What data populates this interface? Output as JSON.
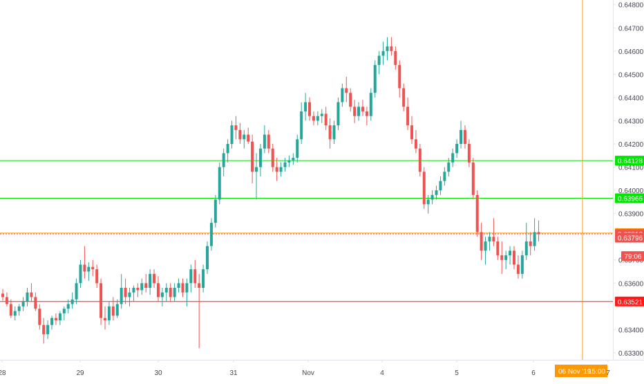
{
  "colors": {
    "up": "#26a69a",
    "down": "#ef5350",
    "green_line": "#00e600",
    "orange_line": "#ff9800",
    "red_line": "#ff1a1a",
    "axis_text": "#434651",
    "axis_line": "#e0e3eb"
  },
  "chart_data": {
    "type": "candlestick",
    "title": "",
    "xlabel": "",
    "ylabel": "",
    "ylim": [
      0.6327,
      0.6482
    ],
    "grid": false,
    "y_ticks": [
      "0.64800",
      "0.64700",
      "0.64600",
      "0.64500",
      "0.64400",
      "0.64300",
      "0.64200",
      "0.64100",
      "0.64000",
      "0.63900",
      "0.63700",
      "0.63600",
      "0.63400",
      "0.63300"
    ],
    "x_tick_labels": [
      "28",
      "29",
      "30",
      "31",
      "Nov",
      "4",
      "5",
      "6",
      "7"
    ],
    "horizontal_lines": [
      {
        "price": 0.64128,
        "label": "0.64128",
        "color_key": "green_line"
      },
      {
        "price": 0.63966,
        "label": "0.63966",
        "color_key": "green_line"
      },
      {
        "price": 0.63816,
        "label": "0.63816",
        "color_key": "orange_line"
      },
      {
        "price": 0.63521,
        "label": "0.63521",
        "color_key": "red_line"
      }
    ],
    "current_price": {
      "price": 0.63812,
      "label": "0.63812",
      "countdown": "79:06"
    },
    "price_badges": [
      {
        "price": 0.63796,
        "label": "0.63796"
      }
    ],
    "crosshair": {
      "date_label": "06 Nov '19",
      "time_label": "15:00"
    },
    "candles": [
      [
        0.63555,
        0.63575,
        0.63525,
        0.6354
      ],
      [
        0.6354,
        0.6356,
        0.635,
        0.6351
      ],
      [
        0.6351,
        0.6353,
        0.6345,
        0.6346
      ],
      [
        0.6346,
        0.635,
        0.6344,
        0.6348
      ],
      [
        0.6348,
        0.6351,
        0.6346,
        0.635
      ],
      [
        0.635,
        0.6354,
        0.6348,
        0.6352
      ],
      [
        0.6352,
        0.6358,
        0.635,
        0.6356
      ],
      [
        0.6356,
        0.636,
        0.6352,
        0.6354
      ],
      [
        0.6354,
        0.6356,
        0.6348,
        0.6349
      ],
      [
        0.6349,
        0.6351,
        0.634,
        0.6342
      ],
      [
        0.6342,
        0.6345,
        0.6334,
        0.6338
      ],
      [
        0.6338,
        0.6344,
        0.6336,
        0.6342
      ],
      [
        0.6342,
        0.6346,
        0.634,
        0.6345
      ],
      [
        0.6345,
        0.6347,
        0.6342,
        0.6344
      ],
      [
        0.6344,
        0.6348,
        0.6342,
        0.6347
      ],
      [
        0.6347,
        0.635,
        0.6344,
        0.6349
      ],
      [
        0.6349,
        0.6353,
        0.6347,
        0.6351
      ],
      [
        0.6351,
        0.6356,
        0.6349,
        0.6353
      ],
      [
        0.6353,
        0.6362,
        0.6351,
        0.636
      ],
      [
        0.636,
        0.637,
        0.6358,
        0.6368
      ],
      [
        0.6368,
        0.6376,
        0.6362,
        0.6365
      ],
      [
        0.6365,
        0.6369,
        0.6361,
        0.6367
      ],
      [
        0.6367,
        0.637,
        0.6363,
        0.6366
      ],
      [
        0.6366,
        0.6368,
        0.6358,
        0.636
      ],
      [
        0.636,
        0.6362,
        0.6342,
        0.6345
      ],
      [
        0.6345,
        0.635,
        0.634,
        0.6344
      ],
      [
        0.6344,
        0.6352,
        0.6342,
        0.635
      ],
      [
        0.635,
        0.6354,
        0.6344,
        0.6346
      ],
      [
        0.6346,
        0.6353,
        0.6345,
        0.6351
      ],
      [
        0.6351,
        0.6364,
        0.6349,
        0.6358
      ],
      [
        0.6358,
        0.6362,
        0.6351,
        0.6354
      ],
      [
        0.6354,
        0.6358,
        0.635,
        0.6356
      ],
      [
        0.6356,
        0.6359,
        0.6352,
        0.6358
      ],
      [
        0.6358,
        0.636,
        0.6354,
        0.6357
      ],
      [
        0.6357,
        0.6362,
        0.6355,
        0.636
      ],
      [
        0.636,
        0.6364,
        0.6356,
        0.6358
      ],
      [
        0.6358,
        0.6366,
        0.6355,
        0.6364
      ],
      [
        0.6364,
        0.6366,
        0.6358,
        0.636
      ],
      [
        0.636,
        0.6363,
        0.6352,
        0.6354
      ],
      [
        0.6354,
        0.6358,
        0.635,
        0.6356
      ],
      [
        0.6356,
        0.636,
        0.6352,
        0.6358
      ],
      [
        0.6358,
        0.636,
        0.6352,
        0.6354
      ],
      [
        0.6354,
        0.636,
        0.6352,
        0.6358
      ],
      [
        0.6358,
        0.6362,
        0.6356,
        0.636
      ],
      [
        0.636,
        0.6362,
        0.6354,
        0.6356
      ],
      [
        0.6356,
        0.6362,
        0.635,
        0.636
      ],
      [
        0.636,
        0.6368,
        0.6356,
        0.6366
      ],
      [
        0.6366,
        0.637,
        0.6358,
        0.636
      ],
      [
        0.636,
        0.6364,
        0.6332,
        0.6358
      ],
      [
        0.6358,
        0.6368,
        0.6356,
        0.6366
      ],
      [
        0.6366,
        0.6378,
        0.6364,
        0.6376
      ],
      [
        0.6376,
        0.6388,
        0.6374,
        0.6386
      ],
      [
        0.6386,
        0.6398,
        0.6384,
        0.6396
      ],
      [
        0.6396,
        0.6412,
        0.6394,
        0.641
      ],
      [
        0.641,
        0.6418,
        0.6406,
        0.6416
      ],
      [
        0.6416,
        0.6422,
        0.6412,
        0.642
      ],
      [
        0.642,
        0.643,
        0.6418,
        0.6428
      ],
      [
        0.6428,
        0.6432,
        0.6422,
        0.6426
      ],
      [
        0.6426,
        0.6429,
        0.642,
        0.6422
      ],
      [
        0.6422,
        0.6426,
        0.6418,
        0.6424
      ],
      [
        0.6424,
        0.6427,
        0.642,
        0.6421
      ],
      [
        0.6421,
        0.6424,
        0.6403,
        0.6408
      ],
      [
        0.6408,
        0.6416,
        0.6396,
        0.641
      ],
      [
        0.641,
        0.642,
        0.6406,
        0.6418
      ],
      [
        0.6418,
        0.6428,
        0.6416,
        0.6424
      ],
      [
        0.6424,
        0.6426,
        0.6416,
        0.6418
      ],
      [
        0.6418,
        0.642,
        0.6408,
        0.641
      ],
      [
        0.641,
        0.6414,
        0.6404,
        0.6408
      ],
      [
        0.6408,
        0.6412,
        0.6406,
        0.641
      ],
      [
        0.641,
        0.6414,
        0.6408,
        0.6412
      ],
      [
        0.6412,
        0.6415,
        0.641,
        0.6413
      ],
      [
        0.6413,
        0.6416,
        0.6411,
        0.6414
      ],
      [
        0.6414,
        0.6424,
        0.6412,
        0.6422
      ],
      [
        0.6422,
        0.6438,
        0.642,
        0.6434
      ],
      [
        0.6434,
        0.6442,
        0.643,
        0.6438
      ],
      [
        0.6438,
        0.644,
        0.643,
        0.6432
      ],
      [
        0.6432,
        0.6434,
        0.6428,
        0.643
      ],
      [
        0.643,
        0.6434,
        0.6428,
        0.6432
      ],
      [
        0.6432,
        0.6435,
        0.6429,
        0.6433
      ],
      [
        0.6433,
        0.6436,
        0.6426,
        0.6428
      ],
      [
        0.6428,
        0.6431,
        0.6418,
        0.6422
      ],
      [
        0.6422,
        0.643,
        0.642,
        0.6428
      ],
      [
        0.6428,
        0.644,
        0.6426,
        0.6438
      ],
      [
        0.6438,
        0.6446,
        0.6436,
        0.6444
      ],
      [
        0.6444,
        0.6449,
        0.6438,
        0.6442
      ],
      [
        0.6442,
        0.6444,
        0.6434,
        0.6436
      ],
      [
        0.6436,
        0.6439,
        0.6429,
        0.6432
      ],
      [
        0.6432,
        0.6438,
        0.643,
        0.6436
      ],
      [
        0.6436,
        0.6439,
        0.6432,
        0.6434
      ],
      [
        0.6434,
        0.6436,
        0.6428,
        0.6432
      ],
      [
        0.6432,
        0.6444,
        0.643,
        0.6442
      ],
      [
        0.6442,
        0.6456,
        0.644,
        0.6454
      ],
      [
        0.6454,
        0.646,
        0.645,
        0.6458
      ],
      [
        0.6458,
        0.6464,
        0.6454,
        0.646
      ],
      [
        0.646,
        0.6466,
        0.6456,
        0.6462
      ],
      [
        0.6462,
        0.6466,
        0.6458,
        0.646
      ],
      [
        0.646,
        0.6462,
        0.6452,
        0.6454
      ],
      [
        0.6454,
        0.6456,
        0.644,
        0.6444
      ],
      [
        0.6444,
        0.6446,
        0.6434,
        0.6436
      ],
      [
        0.6436,
        0.644,
        0.6426,
        0.6428
      ],
      [
        0.6428,
        0.6432,
        0.642,
        0.6422
      ],
      [
        0.6422,
        0.6426,
        0.6416,
        0.6418
      ],
      [
        0.6418,
        0.642,
        0.6406,
        0.6408
      ],
      [
        0.6408,
        0.641,
        0.6392,
        0.6394
      ],
      [
        0.6394,
        0.6398,
        0.639,
        0.6396
      ],
      [
        0.6396,
        0.64,
        0.6394,
        0.6398
      ],
      [
        0.6398,
        0.6402,
        0.6396,
        0.64
      ],
      [
        0.64,
        0.6406,
        0.6398,
        0.6404
      ],
      [
        0.6404,
        0.641,
        0.6402,
        0.6408
      ],
      [
        0.6408,
        0.6414,
        0.6406,
        0.6412
      ],
      [
        0.6412,
        0.6418,
        0.641,
        0.6416
      ],
      [
        0.6416,
        0.6422,
        0.6414,
        0.642
      ],
      [
        0.642,
        0.643,
        0.6418,
        0.6426
      ],
      [
        0.6426,
        0.6428,
        0.6418,
        0.642
      ],
      [
        0.642,
        0.6422,
        0.641,
        0.6412
      ],
      [
        0.6412,
        0.6414,
        0.6396,
        0.6398
      ],
      [
        0.6398,
        0.64,
        0.638,
        0.6382
      ],
      [
        0.6382,
        0.6386,
        0.637,
        0.6374
      ],
      [
        0.6374,
        0.638,
        0.6368,
        0.6378
      ],
      [
        0.6378,
        0.6382,
        0.6374,
        0.638
      ],
      [
        0.638,
        0.6388,
        0.6376,
        0.6378
      ],
      [
        0.6378,
        0.638,
        0.637,
        0.6372
      ],
      [
        0.6372,
        0.6378,
        0.6364,
        0.637
      ],
      [
        0.637,
        0.6374,
        0.6366,
        0.6372
      ],
      [
        0.6372,
        0.6376,
        0.6368,
        0.6374
      ],
      [
        0.6374,
        0.6376,
        0.6366,
        0.6368
      ],
      [
        0.6368,
        0.6372,
        0.6362,
        0.6364
      ],
      [
        0.6364,
        0.6374,
        0.6362,
        0.6372
      ],
      [
        0.6372,
        0.6386,
        0.637,
        0.6378
      ],
      [
        0.6378,
        0.6382,
        0.6372,
        0.6376
      ],
      [
        0.6376,
        0.6388,
        0.6374,
        0.6382
      ],
      [
        0.6382,
        0.6387,
        0.6378,
        0.63812
      ]
    ]
  }
}
